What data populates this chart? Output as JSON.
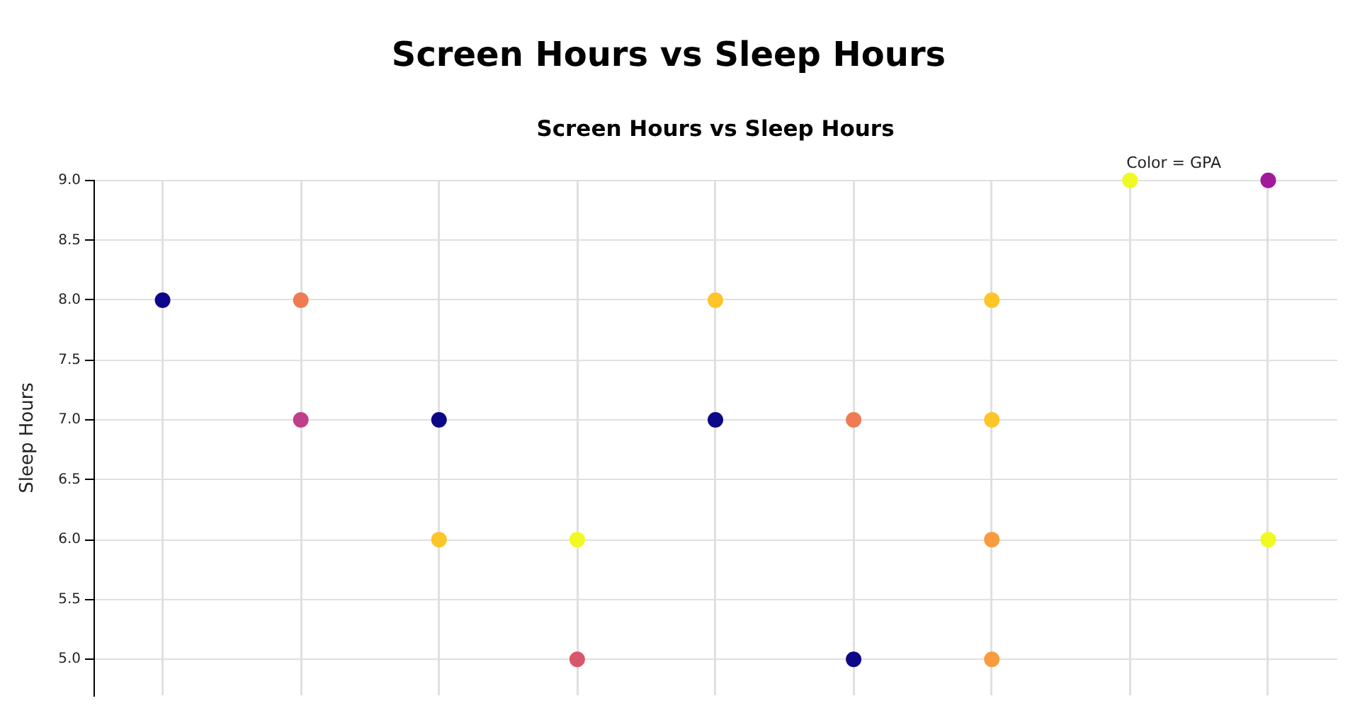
{
  "chart_data": {
    "type": "scatter",
    "title": "Screen Hours vs Sleep Hours",
    "subtitle": "Screen Hours vs Sleep Hours",
    "ylabel": "Sleep Hours",
    "annotations": [
      "Color = GPA"
    ],
    "categories": [
      null,
      null,
      null,
      null,
      null,
      null,
      null,
      null,
      null
    ],
    "series": [
      {
        "values": [
          8,
          8,
          7,
          6,
          8,
          7,
          8,
          9,
          9
        ],
        "colors": [
          "#0d0887",
          "#ee7b52",
          "#0d0887",
          "#f0f921",
          "#fdc527",
          "#ee7b52",
          "#fdc527",
          "#f0f921",
          "#a01a9c"
        ]
      },
      {
        "values": [
          null,
          7,
          6,
          5,
          7,
          5,
          7,
          null,
          6
        ],
        "colors": [
          null,
          "#c03f8a",
          "#fdc527",
          "#d8576b",
          "#0d0887",
          "#0d0887",
          "#fdc527",
          null,
          "#f0f921"
        ]
      },
      {
        "values": [
          null,
          null,
          null,
          null,
          null,
          null,
          6,
          null,
          null
        ],
        "colors": [
          null,
          null,
          null,
          null,
          null,
          null,
          "#f99b3e",
          null,
          null
        ]
      },
      {
        "values": [
          null,
          null,
          null,
          null,
          null,
          null,
          5,
          null,
          null
        ],
        "colors": [
          null,
          null,
          null,
          null,
          null,
          null,
          "#f99b3e",
          null,
          null
        ]
      }
    ],
    "ylim": [
      4.7,
      9
    ],
    "yticks": [
      {
        "value": 5,
        "label": "5.0"
      },
      {
        "value": 5.5,
        "label": "5.5"
      },
      {
        "value": 6,
        "label": "6.0"
      },
      {
        "value": 6.5,
        "label": "6.5"
      },
      {
        "value": 7,
        "label": "7.0"
      },
      {
        "value": 7.5,
        "label": "7.5"
      },
      {
        "value": 8,
        "label": "8.0"
      },
      {
        "value": 8.5,
        "label": "8.5"
      },
      {
        "value": 9,
        "label": "9.0"
      }
    ],
    "grid": true,
    "marker": "circle"
  }
}
